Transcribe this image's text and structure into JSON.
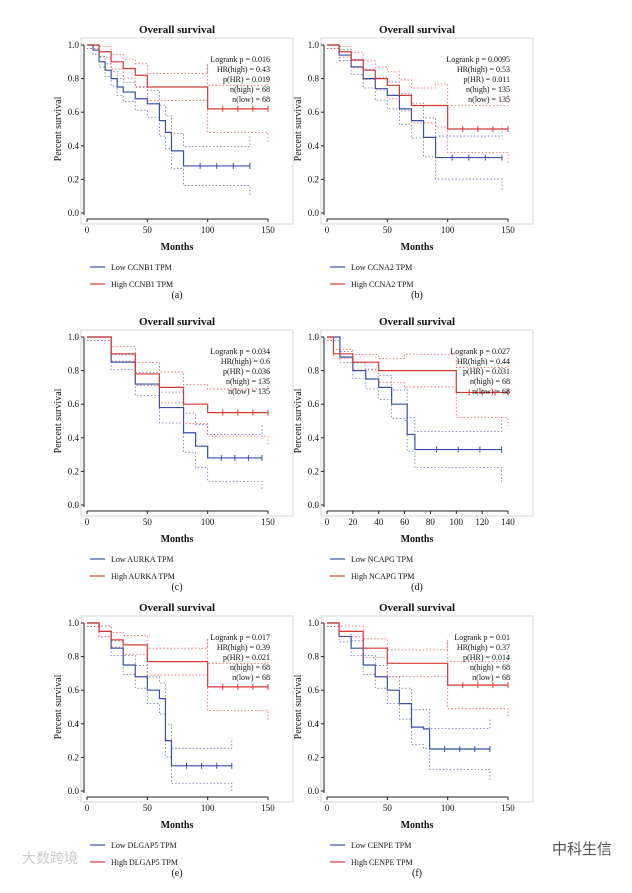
{
  "watermarks": [
    "大数跨境",
    "中科生信"
  ],
  "chart_data": [
    {
      "type": "line",
      "caption": "(a)",
      "title": "Overall survival",
      "xlabel": "Months",
      "ylabel": "Percent survival",
      "xlim": [
        0,
        150
      ],
      "xticks": [
        0,
        50,
        100,
        150
      ],
      "ylim": [
        0,
        1
      ],
      "yticks": [
        "0.0",
        "0.2",
        "0.4",
        "0.6",
        "0.8",
        "1.0"
      ],
      "stats": [
        "Logrank p = 0.016",
        "HR(high) = 0.43",
        "p(HR) = 0.019",
        "n(high) = 68",
        "n(low) = 68"
      ],
      "series": [
        {
          "name": "Low CCNB1 TPM",
          "color": "#3b4fa8",
          "x": [
            0,
            5,
            10,
            15,
            20,
            25,
            30,
            40,
            50,
            60,
            65,
            70,
            80,
            135
          ],
          "y": [
            1,
            0.97,
            0.9,
            0.85,
            0.8,
            0.75,
            0.72,
            0.68,
            0.65,
            0.55,
            0.48,
            0.37,
            0.28,
            0.28
          ]
        },
        {
          "name": "High CCNB1 TPM",
          "color": "#d43a32",
          "x": [
            0,
            10,
            20,
            30,
            40,
            50,
            100,
            100,
            150
          ],
          "y": [
            1,
            0.96,
            0.9,
            0.86,
            0.82,
            0.75,
            0.75,
            0.62,
            0.62
          ]
        }
      ]
    },
    {
      "type": "line",
      "caption": "(b)",
      "title": "Overall survival",
      "xlabel": "Months",
      "ylabel": "Percent survival",
      "xlim": [
        0,
        150
      ],
      "xticks": [
        0,
        50,
        100,
        150
      ],
      "ylim": [
        0,
        1
      ],
      "yticks": [
        "0.0",
        "0.2",
        "0.4",
        "0.6",
        "0.8",
        "1.0"
      ],
      "stats": [
        "Logrank p = 0.0095",
        "HR(high) = 0.53",
        "p(HR) = 0.011",
        "n(high) = 135",
        "n(low) = 135"
      ],
      "series": [
        {
          "name": "Low CCNA2 TPM",
          "color": "#3b4fa8",
          "x": [
            0,
            10,
            20,
            30,
            40,
            50,
            60,
            70,
            80,
            90,
            145
          ],
          "y": [
            1,
            0.94,
            0.87,
            0.8,
            0.74,
            0.7,
            0.62,
            0.55,
            0.45,
            0.33,
            0.33
          ]
        },
        {
          "name": "High CCNA2 TPM",
          "color": "#d43a32",
          "x": [
            0,
            10,
            20,
            30,
            40,
            50,
            60,
            70,
            90,
            100,
            150
          ],
          "y": [
            1,
            0.96,
            0.91,
            0.85,
            0.8,
            0.76,
            0.7,
            0.64,
            0.64,
            0.5,
            0.5
          ]
        }
      ]
    },
    {
      "type": "line",
      "caption": "(c)",
      "title": "Overall survival",
      "xlabel": "Months",
      "ylabel": "Percent survival",
      "xlim": [
        0,
        150
      ],
      "xticks": [
        0,
        50,
        100,
        150
      ],
      "ylim": [
        0,
        1
      ],
      "yticks": [
        "0.0",
        "0.2",
        "0.4",
        "0.6",
        "0.8",
        "1.0"
      ],
      "stats": [
        "Logrank p = 0.034",
        "HR(high) = 0.6",
        "p(HR) = 0.036",
        "n(high) = 135",
        "n(low) = 135"
      ],
      "series": [
        {
          "name": "Low AURKA TPM",
          "color": "#3b4fa8",
          "x": [
            0,
            20,
            40,
            60,
            80,
            90,
            100,
            145
          ],
          "y": [
            1,
            0.85,
            0.72,
            0.58,
            0.43,
            0.35,
            0.28,
            0.28
          ]
        },
        {
          "name": "High AURKA TPM",
          "color": "#d43a32",
          "x": [
            0,
            20,
            40,
            60,
            80,
            100,
            150
          ],
          "y": [
            1,
            0.9,
            0.78,
            0.7,
            0.6,
            0.55,
            0.55
          ]
        }
      ]
    },
    {
      "type": "line",
      "caption": "(d)",
      "title": "Overall survival",
      "xlabel": "Months",
      "ylabel": "Percent survival",
      "xlim": [
        0,
        140
      ],
      "xticks": [
        0,
        20,
        40,
        60,
        80,
        100,
        120,
        140
      ],
      "ylim": [
        0,
        1
      ],
      "yticks": [
        "0.0",
        "0.2",
        "0.4",
        "0.6",
        "0.8",
        "1.0"
      ],
      "stats": [
        "Logrank p = 0.027",
        "HR(high) = 0.44",
        "p(HR) = 0.031",
        "n(high) = 68",
        "n(low) = 68"
      ],
      "series": [
        {
          "name": "Low NCAPG TPM",
          "color": "#3b4fa8",
          "x": [
            0,
            10,
            20,
            30,
            40,
            50,
            60,
            62,
            68,
            135
          ],
          "y": [
            1,
            0.88,
            0.8,
            0.75,
            0.7,
            0.6,
            0.6,
            0.42,
            0.33,
            0.33
          ]
        },
        {
          "name": "High NCAPG TPM",
          "color": "#d43a32",
          "x": [
            0,
            5,
            20,
            40,
            60,
            100,
            140
          ],
          "y": [
            1,
            0.9,
            0.85,
            0.8,
            0.8,
            0.67,
            0.67
          ]
        }
      ]
    },
    {
      "type": "line",
      "caption": "(e)",
      "title": "Overall survival",
      "xlabel": "Months",
      "ylabel": "Percent survival",
      "xlim": [
        0,
        150
      ],
      "xticks": [
        0,
        50,
        100,
        150
      ],
      "ylim": [
        0,
        1
      ],
      "yticks": [
        "0.0",
        "0.2",
        "0.4",
        "0.6",
        "0.8",
        "1.0"
      ],
      "stats": [
        "Logrank p = 0.017",
        "HR(high) = 0.39",
        "p(HR) = 0.021",
        "n(high) = 68",
        "n(low) = 68"
      ],
      "series": [
        {
          "name": "Low DLGAP5 TPM",
          "color": "#3b4fa8",
          "x": [
            0,
            10,
            20,
            30,
            40,
            50,
            60,
            65,
            70,
            120
          ],
          "y": [
            1,
            0.95,
            0.85,
            0.75,
            0.68,
            0.6,
            0.55,
            0.3,
            0.15,
            0.15
          ]
        },
        {
          "name": "High DLGAP5 TPM",
          "color": "#d43a32",
          "x": [
            0,
            10,
            20,
            30,
            50,
            100,
            100,
            150
          ],
          "y": [
            1,
            0.95,
            0.9,
            0.87,
            0.77,
            0.77,
            0.62,
            0.62
          ]
        }
      ]
    },
    {
      "type": "line",
      "caption": "(f)",
      "title": "Overall survival",
      "xlabel": "Months",
      "ylabel": "Percent survival",
      "xlim": [
        0,
        150
      ],
      "xticks": [
        0,
        50,
        100,
        150
      ],
      "ylim": [
        0,
        1
      ],
      "yticks": [
        "0.0",
        "0.2",
        "0.4",
        "0.6",
        "0.8",
        "1.0"
      ],
      "stats": [
        "Logrank p = 0.01",
        "HR(high) = 0.37",
        "p(HR) = 0.014",
        "n(high) = 68",
        "n(low) = 68"
      ],
      "series": [
        {
          "name": "Low CENPE TPM",
          "color": "#3b4fa8",
          "x": [
            0,
            10,
            20,
            30,
            40,
            50,
            60,
            70,
            80,
            85,
            135
          ],
          "y": [
            1,
            0.92,
            0.85,
            0.75,
            0.68,
            0.6,
            0.52,
            0.38,
            0.37,
            0.25,
            0.25
          ]
        },
        {
          "name": "High CENPE TPM",
          "color": "#d43a32",
          "x": [
            0,
            10,
            30,
            50,
            100,
            100,
            150
          ],
          "y": [
            1,
            0.95,
            0.85,
            0.76,
            0.76,
            0.63,
            0.63
          ]
        }
      ]
    }
  ]
}
